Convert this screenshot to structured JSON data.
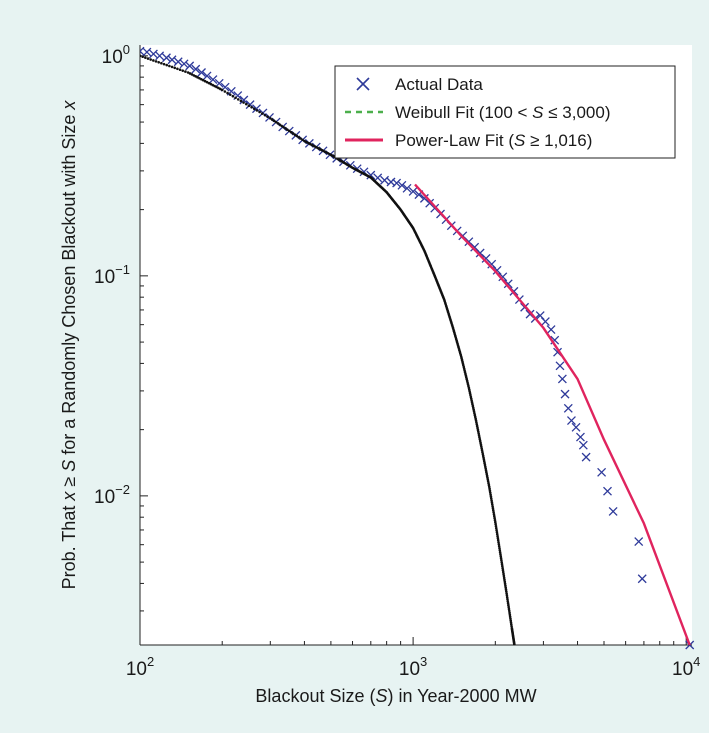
{
  "chart_data": {
    "type": "scatter",
    "title": "",
    "xlabel_parts": [
      "Blackout Size (",
      "S",
      ") in Year-2000 MW"
    ],
    "ylabel_parts": [
      "Prob. That ",
      "x",
      " ≥ ",
      "S",
      " for a Randomly Chosen Blackout with Size ",
      "x"
    ],
    "x_scale": "log",
    "y_scale": "log",
    "xlim": [
      100,
      10500
    ],
    "ylim": [
      0.0021,
      1.12
    ],
    "x_ticks": [
      {
        "value": 100,
        "base": "10",
        "exp": "2"
      },
      {
        "value": 1000,
        "base": "10",
        "exp": "3"
      },
      {
        "value": 10000,
        "base": "10",
        "exp": "4"
      }
    ],
    "y_ticks": [
      {
        "value": 1,
        "base": "10",
        "exp": "0"
      },
      {
        "value": 0.1,
        "base": "10",
        "exp": "−1"
      },
      {
        "value": 0.01,
        "base": "10",
        "exp": "−2"
      }
    ],
    "grid": false,
    "legend_position": "top-right",
    "legend": [
      {
        "marker": "x",
        "color": "#2e3a9a",
        "label_parts": [
          "Actual Data"
        ]
      },
      {
        "marker": "dashed-line",
        "color": "#4caf4c",
        "label_parts": [
          "Weibull Fit (100 < ",
          "S",
          " ≤ 3,000)"
        ]
      },
      {
        "marker": "solid-line",
        "color": "#e0245e",
        "label_parts": [
          "Power-Law Fit (",
          "S",
          " ≥ 1,016)"
        ]
      }
    ],
    "series": [
      {
        "name": "Actual Data",
        "kind": "scatter",
        "marker": "x",
        "color": "#2e3a9a",
        "points": [
          [
            100,
            1.05
          ],
          [
            106,
            1.04
          ],
          [
            112,
            1.02
          ],
          [
            118,
            1.0
          ],
          [
            125,
            0.98
          ],
          [
            131,
            0.96
          ],
          [
            138,
            0.94
          ],
          [
            145,
            0.92
          ],
          [
            152,
            0.9
          ],
          [
            160,
            0.87
          ],
          [
            168,
            0.84
          ],
          [
            176,
            0.81
          ],
          [
            185,
            0.78
          ],
          [
            195,
            0.75
          ],
          [
            205,
            0.72
          ],
          [
            216,
            0.69
          ],
          [
            228,
            0.66
          ],
          [
            240,
            0.63
          ],
          [
            253,
            0.6
          ],
          [
            267,
            0.575
          ],
          [
            282,
            0.55
          ],
          [
            298,
            0.525
          ],
          [
            315,
            0.5
          ],
          [
            333,
            0.475
          ],
          [
            352,
            0.455
          ],
          [
            372,
            0.435
          ],
          [
            394,
            0.415
          ],
          [
            417,
            0.4
          ],
          [
            442,
            0.385
          ],
          [
            468,
            0.37
          ],
          [
            496,
            0.355
          ],
          [
            525,
            0.342
          ],
          [
            556,
            0.33
          ],
          [
            589,
            0.318
          ],
          [
            624,
            0.307
          ],
          [
            661,
            0.297
          ],
          [
            700,
            0.287
          ],
          [
            742,
            0.279
          ],
          [
            786,
            0.272
          ],
          [
            830,
            0.267
          ],
          [
            870,
            0.264
          ],
          [
            910,
            0.258
          ],
          [
            950,
            0.25
          ],
          [
            1000,
            0.242
          ],
          [
            1050,
            0.234
          ],
          [
            1100,
            0.225
          ],
          [
            1150,
            0.214
          ],
          [
            1200,
            0.203
          ],
          [
            1260,
            0.191
          ],
          [
            1320,
            0.18
          ],
          [
            1380,
            0.169
          ],
          [
            1450,
            0.16
          ],
          [
            1520,
            0.152
          ],
          [
            1600,
            0.143
          ],
          [
            1680,
            0.135
          ],
          [
            1760,
            0.127
          ],
          [
            1850,
            0.12
          ],
          [
            1940,
            0.113
          ],
          [
            2030,
            0.106
          ],
          [
            2130,
            0.099
          ],
          [
            2230,
            0.092
          ],
          [
            2340,
            0.085
          ],
          [
            2450,
            0.078
          ],
          [
            2560,
            0.072
          ],
          [
            2680,
            0.067
          ],
          [
            2800,
            0.064
          ],
          [
            2920,
            0.066
          ],
          [
            3050,
            0.062
          ],
          [
            3200,
            0.057
          ],
          [
            3300,
            0.051
          ],
          [
            3380,
            0.045
          ],
          [
            3450,
            0.039
          ],
          [
            3520,
            0.034
          ],
          [
            3600,
            0.029
          ],
          [
            3700,
            0.025
          ],
          [
            3800,
            0.022
          ],
          [
            3950,
            0.0205
          ],
          [
            4100,
            0.0185
          ],
          [
            4200,
            0.017
          ],
          [
            4300,
            0.015
          ],
          [
            4900,
            0.0128
          ],
          [
            5150,
            0.0105
          ],
          [
            5400,
            0.0085
          ],
          [
            6700,
            0.0062
          ],
          [
            6900,
            0.0042
          ],
          [
            10300,
            0.0021
          ]
        ]
      },
      {
        "name": "Weibull Fit (100 < S ≤ 3,000)",
        "kind": "dotted-line",
        "color": "#111111",
        "points": [
          [
            100,
            1.0
          ],
          [
            150,
            0.84
          ],
          [
            200,
            0.7
          ],
          [
            300,
            0.52
          ],
          [
            400,
            0.41
          ],
          [
            500,
            0.355
          ],
          [
            600,
            0.31
          ],
          [
            700,
            0.28
          ],
          [
            800,
            0.24
          ],
          [
            900,
            0.2
          ],
          [
            1000,
            0.165
          ],
          [
            1100,
            0.13
          ],
          [
            1200,
            0.1
          ],
          [
            1300,
            0.078
          ],
          [
            1400,
            0.058
          ],
          [
            1500,
            0.043
          ],
          [
            1600,
            0.031
          ],
          [
            1700,
            0.022
          ],
          [
            1800,
            0.0155
          ],
          [
            1900,
            0.011
          ],
          [
            2000,
            0.0076
          ],
          [
            2100,
            0.0052
          ],
          [
            2200,
            0.0036
          ],
          [
            2300,
            0.0025
          ],
          [
            2350,
            0.0021
          ]
        ]
      },
      {
        "name": "Power-Law Fit (S ≥ 1,016)",
        "kind": "line",
        "color": "#e0245e",
        "points": [
          [
            1016,
            0.26
          ],
          [
            1500,
            0.152
          ],
          [
            2000,
            0.105
          ],
          [
            3000,
            0.058
          ],
          [
            4000,
            0.034
          ],
          [
            5000,
            0.018
          ],
          [
            7000,
            0.0075
          ],
          [
            10300,
            0.0021
          ]
        ]
      }
    ]
  }
}
